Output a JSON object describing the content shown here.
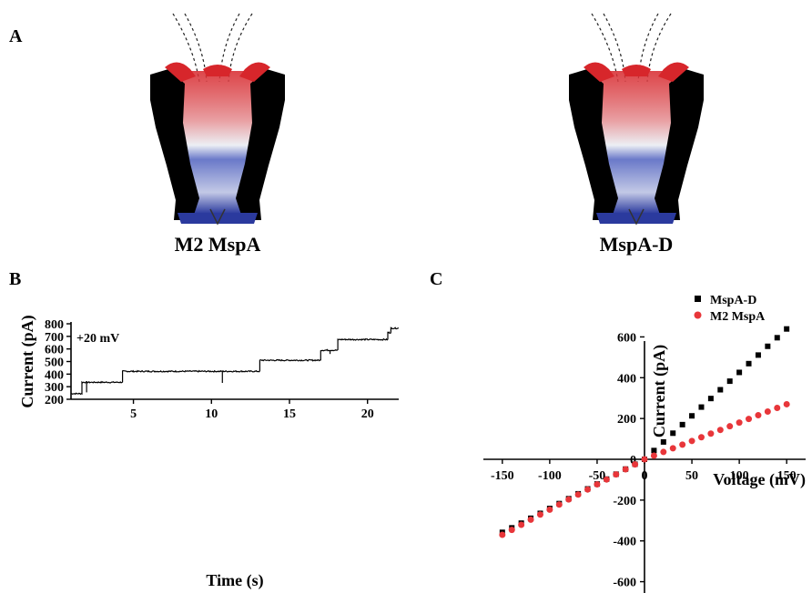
{
  "panels": {
    "a": {
      "letter": "A",
      "left_caption": "M2 MspA",
      "right_caption": "MspA-D",
      "colors": {
        "negative": "#d7262b",
        "positive": "#2b3a9e",
        "neutral": "#eceff4",
        "membrane": "#000000"
      }
    },
    "b": {
      "letter": "B"
    },
    "c": {
      "letter": "C"
    }
  },
  "chart_data": [
    {
      "type": "line",
      "annotation": "+20 mV",
      "xlabel": "Time (s)",
      "ylabel": "Current (pA)",
      "xlim": [
        1,
        22
      ],
      "ylim": [
        200,
        800
      ],
      "xticks": [
        5,
        10,
        15,
        20
      ],
      "yticks": [
        200,
        300,
        400,
        500,
        600,
        700,
        800
      ],
      "color": "#000000",
      "levels": [
        {
          "t_start": 1.0,
          "t_end": 1.7,
          "current": 245
        },
        {
          "t_start": 1.7,
          "t_end": 4.3,
          "current": 335
        },
        {
          "t_start": 4.3,
          "t_end": 13.1,
          "current": 422
        },
        {
          "t_start": 13.1,
          "t_end": 17.0,
          "current": 510
        },
        {
          "t_start": 17.0,
          "t_end": 18.1,
          "current": 590
        },
        {
          "t_start": 18.1,
          "t_end": 21.3,
          "current": 675
        },
        {
          "t_start": 21.3,
          "t_end": 21.5,
          "current": 730
        },
        {
          "t_start": 21.5,
          "t_end": 22.0,
          "current": 765
        }
      ],
      "spikes": [
        {
          "t": 2.0,
          "current": 255
        },
        {
          "t": 10.7,
          "current": 330
        },
        {
          "t": 17.6,
          "current": 560
        }
      ]
    },
    {
      "type": "scatter",
      "xlabel": "Voltage (mV)",
      "ylabel": "Current (pA)",
      "xlim": [
        -170,
        170
      ],
      "ylim": [
        -700,
        700
      ],
      "xticks": [
        -150,
        -100,
        -50,
        0,
        50,
        100,
        150
      ],
      "yticks": [
        -600,
        -400,
        -200,
        0,
        200,
        400,
        600
      ],
      "legend_position": "top-right",
      "x": [
        -150,
        -140,
        -130,
        -120,
        -110,
        -100,
        -90,
        -80,
        -70,
        -60,
        -50,
        -40,
        -30,
        -20,
        -10,
        0,
        10,
        20,
        30,
        40,
        50,
        60,
        70,
        80,
        90,
        100,
        110,
        120,
        130,
        140,
        150
      ],
      "series": [
        {
          "name": "MspA-D",
          "marker": "square",
          "color": "#000000",
          "values": [
            -358,
            -336,
            -313,
            -289,
            -265,
            -241,
            -217,
            -193,
            -169,
            -145,
            -121,
            -97,
            -73,
            -48,
            -24,
            0,
            43,
            85,
            128,
            170,
            213,
            256,
            298,
            341,
            383,
            426,
            469,
            511,
            554,
            596,
            639
          ]
        },
        {
          "name": "M2 MspA",
          "marker": "circle",
          "color": "#e8363a",
          "values": [
            -370,
            -346,
            -321,
            -296,
            -271,
            -247,
            -222,
            -197,
            -173,
            -148,
            -123,
            -99,
            -74,
            -49,
            -25,
            0,
            18,
            36,
            54,
            72,
            90,
            108,
            126,
            144,
            162,
            180,
            198,
            216,
            234,
            252,
            270
          ]
        }
      ]
    }
  ]
}
